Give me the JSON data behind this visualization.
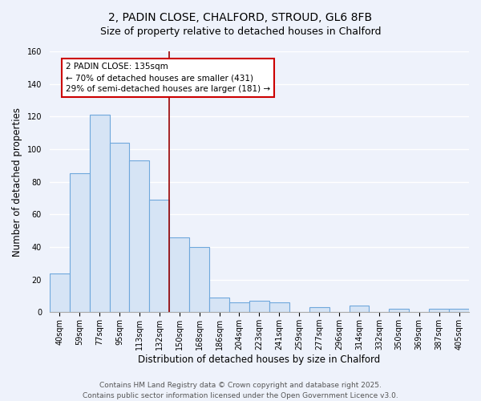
{
  "title": "2, PADIN CLOSE, CHALFORD, STROUD, GL6 8FB",
  "subtitle": "Size of property relative to detached houses in Chalford",
  "xlabel": "Distribution of detached houses by size in Chalford",
  "ylabel": "Number of detached properties",
  "categories": [
    "40sqm",
    "59sqm",
    "77sqm",
    "95sqm",
    "113sqm",
    "132sqm",
    "150sqm",
    "168sqm",
    "186sqm",
    "204sqm",
    "223sqm",
    "241sqm",
    "259sqm",
    "277sqm",
    "296sqm",
    "314sqm",
    "332sqm",
    "350sqm",
    "369sqm",
    "387sqm",
    "405sqm"
  ],
  "values": [
    24,
    85,
    121,
    104,
    93,
    69,
    46,
    40,
    9,
    6,
    7,
    6,
    0,
    3,
    0,
    4,
    0,
    2,
    0,
    2,
    2
  ],
  "bar_color": "#d6e4f5",
  "bar_edge_color": "#6fa8dc",
  "ylim": [
    0,
    160
  ],
  "yticks": [
    0,
    20,
    40,
    60,
    80,
    100,
    120,
    140,
    160
  ],
  "vline_x": 5.5,
  "vline_color": "#990000",
  "annotation_title": "2 PADIN CLOSE: 135sqm",
  "annotation_line1": "← 70% of detached houses are smaller (431)",
  "annotation_line2": "29% of semi-detached houses are larger (181) →",
  "annotation_box_color": "#cc0000",
  "footer1": "Contains HM Land Registry data © Crown copyright and database right 2025.",
  "footer2": "Contains public sector information licensed under the Open Government Licence v3.0.",
  "background_color": "#eef2fb",
  "grid_color": "#ffffff",
  "plot_bg_color": "#eef2fb",
  "title_fontsize": 10,
  "subtitle_fontsize": 9,
  "axis_label_fontsize": 8.5,
  "tick_fontsize": 7,
  "footer_fontsize": 6.5,
  "annotation_fontsize": 7.5
}
